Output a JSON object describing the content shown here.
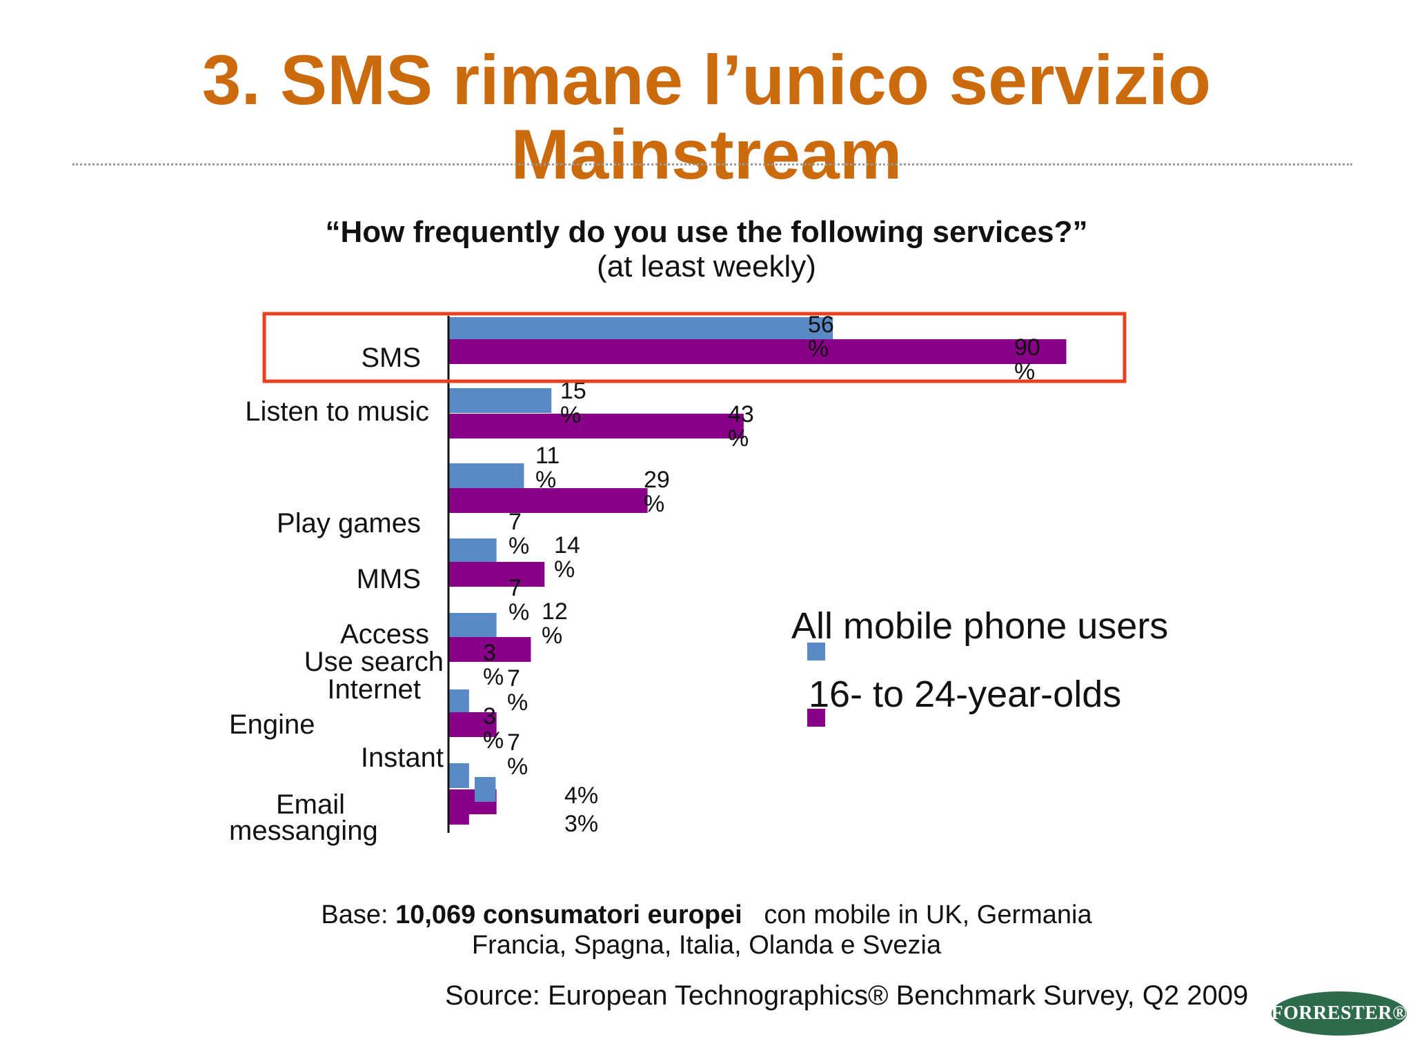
{
  "slide": {
    "title_line1": "3. SMS rimane l’unico servizio",
    "title_line2": "Mainstream",
    "question": "“How frequently do you use the following services?”",
    "question_sub": "(at least weekly)",
    "base_prefix": "Base: ",
    "base_bold": "10,069 consumatori europei",
    "base_rest": "   con mobile in UK, Germania",
    "base_line2": "Francia, Spagna, Italia, Olanda  e Svezia",
    "source": "Source: European Technographics® Benchmark Survey, Q2 2009",
    "logo_text": "FORRESTER®"
  },
  "colors": {
    "title": "#cc6a0e",
    "all_users": "#5a8ac6",
    "young": "#870087",
    "highlight_box": "#e8401c"
  },
  "chart_data": {
    "type": "bar",
    "orientation": "horizontal",
    "categories": [
      "SMS",
      "Listen to music",
      "Play games",
      "MMS",
      "Access Internet",
      "Use search Engine",
      "Instant messanging",
      "Email"
    ],
    "series": [
      {
        "name": "All mobile phone users",
        "values": [
          56,
          15,
          11,
          7,
          7,
          3,
          3,
          4
        ]
      },
      {
        "name": "16- to 24-year-olds",
        "values": [
          90,
          43,
          29,
          14,
          12,
          7,
          7,
          3
        ]
      }
    ],
    "value_unit": "%",
    "category_labels": [
      {
        "text": "SMS"
      },
      {
        "text": "Listen to music"
      },
      {
        "text": "Play games"
      },
      {
        "text": "MMS"
      },
      {
        "text": "Access"
      },
      {
        "text": "Use search"
      },
      {
        "text": "Internet"
      },
      {
        "text": "Engine"
      },
      {
        "text": "Instant"
      },
      {
        "text": "Email"
      },
      {
        "text": "messanging"
      }
    ],
    "legend_placement": "right",
    "highlighted_category": "SMS",
    "xlim": [
      0,
      100
    ]
  }
}
